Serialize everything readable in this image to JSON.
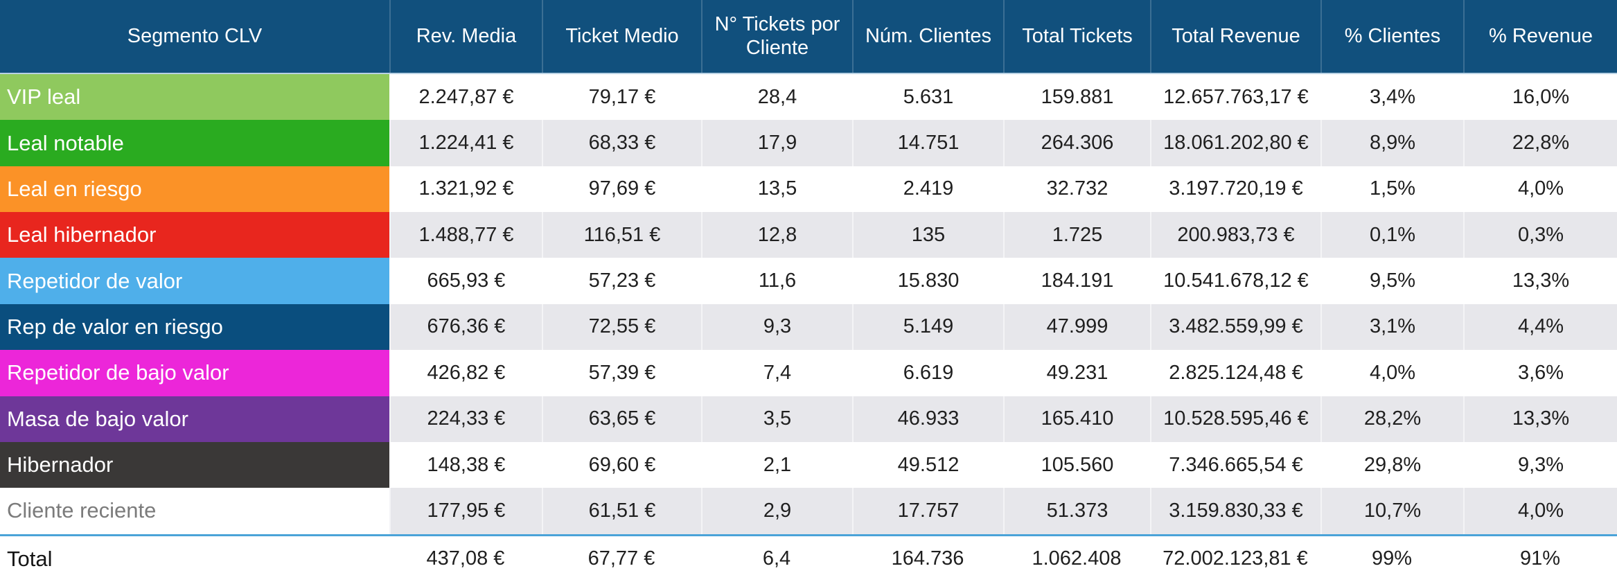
{
  "chart_data": {
    "type": "table",
    "title": "Segmento CLV",
    "columns": [
      "Segmento CLV",
      "Rev. Media",
      "Ticket Medio",
      "N° Tickets por Cliente",
      "Núm. Clientes",
      "Total Tickets",
      "Total Revenue",
      "% Clientes",
      "% Revenue"
    ],
    "rows": [
      {
        "segment": "VIP leal",
        "row_color": "#8FC95E",
        "label_text_color": "#FFFFFF",
        "values": [
          "2.247,87 €",
          "79,17 €",
          "28,4",
          "5.631",
          "159.881",
          "12.657.763,17 €",
          "3,4%",
          "16,0%"
        ]
      },
      {
        "segment": "Leal notable",
        "row_color": "#2AAB20",
        "label_text_color": "#FFFFFF",
        "values": [
          "1.224,41 €",
          "68,33 €",
          "17,9",
          "14.751",
          "264.306",
          "18.061.202,80 €",
          "8,9%",
          "22,8%"
        ]
      },
      {
        "segment": "Leal en riesgo",
        "row_color": "#FB9227",
        "label_text_color": "#FFFFFF",
        "values": [
          "1.321,92 €",
          "97,69 €",
          "13,5",
          "2.419",
          "32.732",
          "3.197.720,19 €",
          "1,5%",
          "4,0%"
        ]
      },
      {
        "segment": "Leal hibernador",
        "row_color": "#E8261E",
        "label_text_color": "#FFFFFF",
        "values": [
          "1.488,77 €",
          "116,51 €",
          "12,8",
          "135",
          "1.725",
          "200.983,73 €",
          "0,1%",
          "0,3%"
        ]
      },
      {
        "segment": "Repetidor de valor",
        "row_color": "#4FAFEA",
        "label_text_color": "#FFFFFF",
        "values": [
          "665,93 €",
          "57,23 €",
          "11,6",
          "15.830",
          "184.191",
          "10.541.678,12 €",
          "9,5%",
          "13,3%"
        ]
      },
      {
        "segment": "Rep de valor en riesgo",
        "row_color": "#0A4E7E",
        "label_text_color": "#FFFFFF",
        "values": [
          "676,36 €",
          "72,55 €",
          "9,3",
          "5.149",
          "47.999",
          "3.482.559,99 €",
          "3,1%",
          "4,4%"
        ]
      },
      {
        "segment": "Repetidor de bajo valor",
        "row_color": "#EC26D9",
        "label_text_color": "#FFFFFF",
        "values": [
          "426,82 €",
          "57,39 €",
          "7,4",
          "6.619",
          "49.231",
          "2.825.124,48 €",
          "4,0%",
          "3,6%"
        ]
      },
      {
        "segment": "Masa de bajo valor",
        "row_color": "#6E3799",
        "label_text_color": "#FFFFFF",
        "values": [
          "224,33 €",
          "63,65 €",
          "3,5",
          "46.933",
          "165.410",
          "10.528.595,46 €",
          "28,2%",
          "13,3%"
        ]
      },
      {
        "segment": "Hibernador",
        "row_color": "#3A3837",
        "label_text_color": "#FFFFFF",
        "values": [
          "148,38 €",
          "69,60 €",
          "2,1",
          "49.512",
          "105.560",
          "7.346.665,54 €",
          "29,8%",
          "9,3%"
        ]
      },
      {
        "segment": "Cliente reciente",
        "row_color": "#FFFFFF",
        "label_text_color": "#7B7B7B",
        "values": [
          "177,95 €",
          "61,51 €",
          "2,9",
          "17.757",
          "51.373",
          "3.159.830,33 €",
          "10,7%",
          "4,0%"
        ]
      }
    ],
    "total_row": {
      "segment": "Total",
      "values": [
        "437,08 €",
        "67,77 €",
        "6,4",
        "164.736",
        "1.062.408",
        "72.002.123,81 €",
        "99%",
        "91%"
      ]
    }
  },
  "colors": {
    "header_bg": "#11507D",
    "header_text": "#FFFFFF",
    "row_bg": "#FFFFFF",
    "row_alt_bg": "#E7E7EB",
    "header_separator": "#B9D2E4",
    "total_border": "#4AA3D8"
  }
}
